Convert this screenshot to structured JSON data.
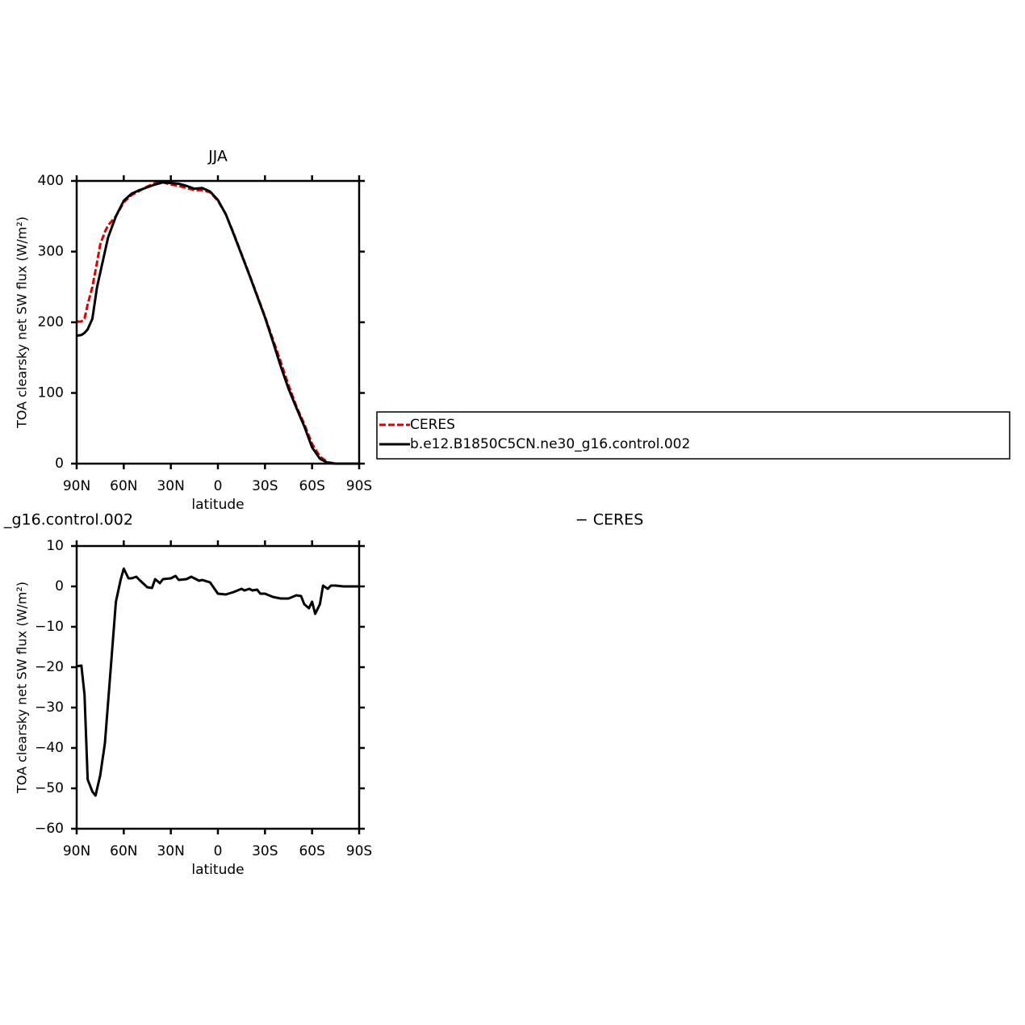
{
  "chart_data": [
    {
      "type": "line",
      "title": "JJA",
      "xlabel": "latitude",
      "ylabel": "TOA clearsky net SW flux (W/m²)",
      "xlim": [
        90,
        -90
      ],
      "xticks": [
        {
          "value": 90,
          "label": "90N"
        },
        {
          "value": 60,
          "label": "60N"
        },
        {
          "value": 30,
          "label": "30N"
        },
        0,
        {
          "value": -30,
          "label": "30S"
        },
        {
          "value": -60,
          "label": "60S"
        },
        {
          "value": -90,
          "label": "90S"
        }
      ],
      "ylim": [
        0,
        400
      ],
      "yticks": [
        0,
        100,
        200,
        300,
        400
      ],
      "legend": true,
      "x": [
        90,
        87,
        85,
        83,
        80,
        77,
        75,
        72,
        70,
        65,
        60,
        55,
        50,
        45,
        40,
        35,
        30,
        25,
        20,
        15,
        10,
        5,
        0,
        -5,
        -10,
        -15,
        -20,
        -25,
        -30,
        -35,
        -40,
        -45,
        -50,
        -55,
        -60,
        -65,
        -70,
        -75,
        -80,
        -85,
        -90
      ],
      "series": [
        {
          "name": "CERES",
          "color": "#e00000",
          "line_style": "dashed",
          "values": [
            201,
            201,
            205,
            225,
            250,
            285,
            310,
            328,
            337,
            350,
            370,
            380,
            386,
            392,
            397,
            398,
            395,
            393,
            390,
            387,
            387,
            384,
            372,
            353,
            326,
            297,
            268,
            238,
            208,
            176,
            144,
            111,
            81,
            56,
            28,
            10,
            2,
            0,
            0,
            0,
            0
          ]
        },
        {
          "name": "b.e12.B1850C5CN.ne30_g16.control.002",
          "color": "#000000",
          "line_style": "solid",
          "values": [
            181,
            182,
            185,
            190,
            205,
            250,
            270,
            300,
            320,
            350,
            372,
            382,
            387,
            391,
            395,
            398,
            397,
            396,
            393,
            389,
            390,
            385,
            373,
            353,
            325,
            296,
            267,
            237,
            207,
            173,
            138,
            106,
            79,
            53,
            23,
            7,
            1,
            0,
            0,
            0,
            0
          ]
        }
      ]
    },
    {
      "type": "line",
      "title_left": "_g16.control.002",
      "title_right": "− CERES",
      "xlabel": "latitude",
      "ylabel": "TOA clearsky net SW flux (W/m²)",
      "xlim": [
        90,
        -90
      ],
      "xticks": [
        {
          "value": 90,
          "label": "90N"
        },
        {
          "value": 60,
          "label": "60N"
        },
        {
          "value": 30,
          "label": "30N"
        },
        0,
        {
          "value": -30,
          "label": "30S"
        },
        {
          "value": -60,
          "label": "60S"
        },
        {
          "value": -90,
          "label": "90S"
        }
      ],
      "ylim": [
        -60,
        10
      ],
      "yticks": [
        {
          "value": -60,
          "label": "−60"
        },
        {
          "value": -50,
          "label": "−50"
        },
        {
          "value": -40,
          "label": "−40"
        },
        {
          "value": -30,
          "label": "−30"
        },
        {
          "value": -20,
          "label": "−20"
        },
        {
          "value": -10,
          "label": "−10"
        },
        0,
        10
      ],
      "legend": false,
      "x": [
        90,
        87,
        85,
        83,
        80,
        78,
        75,
        72,
        70,
        65,
        62,
        60,
        57,
        55,
        52,
        50,
        45,
        42,
        40,
        37,
        35,
        30,
        27,
        25,
        20,
        17,
        15,
        12,
        10,
        5,
        0,
        -5,
        -10,
        -15,
        -17,
        -20,
        -22,
        -25,
        -27,
        -30,
        -35,
        -40,
        -45,
        -50,
        -53,
        -55,
        -58,
        -60,
        -62,
        -65,
        -67,
        -70,
        -72,
        -75,
        -80,
        -85,
        -90
      ],
      "series": [
        {
          "color": "#000000",
          "line_style": "solid",
          "values": [
            -19.8,
            -19.6,
            -26.8,
            -47.8,
            -50.8,
            -51.8,
            -46.8,
            -38.8,
            -28.8,
            -3.8,
            1.6,
            4.4,
            2,
            2,
            2.4,
            1.6,
            -0.2,
            -0.4,
            1.8,
            0.8,
            1.8,
            2,
            2.6,
            1.6,
            1.8,
            2.4,
            2,
            1.4,
            1.6,
            1,
            -1.8,
            -2,
            -1.4,
            -0.6,
            -1,
            -0.6,
            -1,
            -0.8,
            -1.8,
            -1.8,
            -2.6,
            -3,
            -3,
            -2.2,
            -2.4,
            -4.4,
            -5.4,
            -3.8,
            -6.8,
            -4.4,
            0.2,
            -0.6,
            0.2,
            0.2,
            0,
            0,
            0
          ]
        }
      ]
    }
  ]
}
